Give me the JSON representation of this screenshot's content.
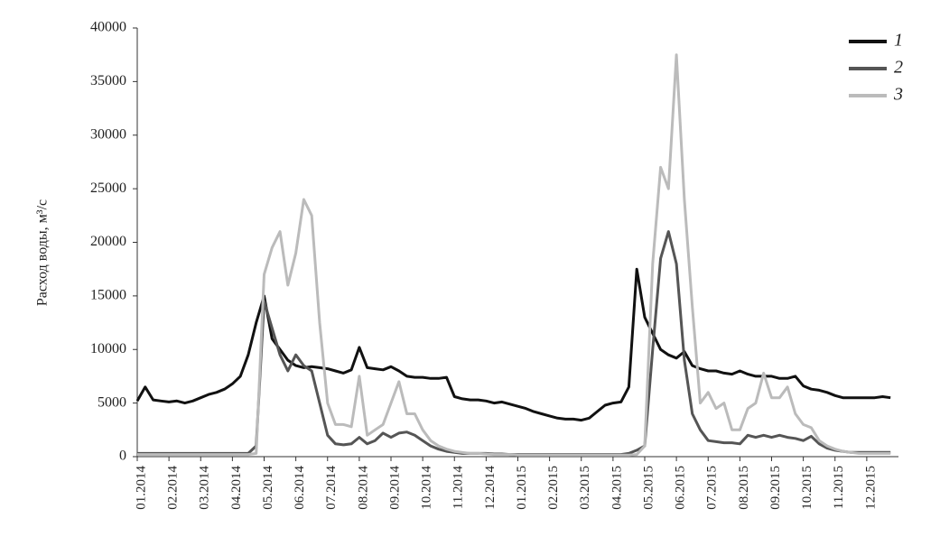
{
  "chart_data": {
    "type": "line",
    "y_label": "Расход воды, м³/с",
    "x": [
      "01.2014",
      null,
      null,
      null,
      "02.2014",
      null,
      null,
      null,
      "03.2014",
      null,
      null,
      null,
      "04.2014",
      null,
      null,
      null,
      "05.2014",
      null,
      null,
      null,
      "06.2014",
      null,
      null,
      null,
      "07.2014",
      null,
      null,
      null,
      "08.2014",
      null,
      null,
      null,
      "09.2014",
      null,
      null,
      null,
      "10.2014",
      null,
      null,
      null,
      "11.2014",
      null,
      null,
      null,
      "12.2014",
      null,
      null,
      null,
      "01.2015",
      null,
      null,
      null,
      "02.2015",
      null,
      null,
      null,
      "03.2015",
      null,
      null,
      null,
      "04.2015",
      null,
      null,
      null,
      "05.2015",
      null,
      null,
      null,
      "06.2015",
      null,
      null,
      null,
      "07.2015",
      null,
      null,
      null,
      "08.2015",
      null,
      null,
      null,
      "09.2015",
      null,
      null,
      null,
      "10.2015",
      null,
      null,
      null,
      "11.2015",
      null,
      null,
      null,
      "12.2015",
      null,
      null,
      null
    ],
    "series": [
      {
        "name": "1",
        "color": "#111111",
        "values": [
          5200,
          6500,
          5300,
          5200,
          5100,
          5200,
          5000,
          5200,
          5500,
          5800,
          6000,
          6300,
          6800,
          7500,
          9500,
          12500,
          15000,
          11000,
          10000,
          9000,
          8500,
          8300,
          8400,
          8300,
          8200,
          8000,
          7800,
          8100,
          10200,
          8300,
          8200,
          8100,
          8400,
          8000,
          7500,
          7400,
          7400,
          7300,
          7300,
          7400,
          5600,
          5400,
          5300,
          5300,
          5200,
          5000,
          5100,
          4900,
          4700,
          4500,
          4200,
          4000,
          3800,
          3600,
          3500,
          3500,
          3400,
          3600,
          4200,
          4800,
          5000,
          5100,
          6500,
          17500,
          13000,
          11500,
          10000,
          9500,
          9200,
          9800,
          8500,
          8200,
          8000,
          8000,
          7800,
          7700,
          8000,
          7700,
          7500,
          7500,
          7500,
          7300,
          7300,
          7500,
          6600,
          6300,
          6200,
          6000,
          5700,
          5500,
          5500,
          5500,
          5500,
          5500,
          5600,
          5500
        ]
      },
      {
        "name": "2",
        "color": "#555555",
        "values": [
          300,
          300,
          300,
          300,
          300,
          300,
          300,
          300,
          300,
          300,
          300,
          300,
          300,
          300,
          300,
          1000,
          14500,
          12000,
          9500,
          8000,
          9500,
          8500,
          8000,
          5000,
          2000,
          1200,
          1100,
          1200,
          1800,
          1200,
          1500,
          2200,
          1800,
          2200,
          2300,
          2000,
          1500,
          1000,
          700,
          500,
          400,
          300,
          300,
          300,
          300,
          250,
          250,
          200,
          200,
          200,
          200,
          200,
          200,
          200,
          200,
          200,
          200,
          200,
          200,
          200,
          200,
          200,
          300,
          600,
          1000,
          10000,
          18500,
          21000,
          18000,
          9000,
          4000,
          2500,
          1500,
          1400,
          1300,
          1300,
          1200,
          2000,
          1800,
          2000,
          1800,
          2000,
          1800,
          1700,
          1500,
          1900,
          1200,
          800,
          600,
          500,
          400,
          400,
          400,
          400,
          400,
          400
        ]
      },
      {
        "name": "3",
        "color": "#bbbbbb",
        "values": [
          200,
          200,
          200,
          200,
          200,
          200,
          200,
          200,
          200,
          200,
          200,
          200,
          200,
          200,
          200,
          300,
          17000,
          19500,
          21000,
          16000,
          19000,
          24000,
          22500,
          12500,
          5000,
          3000,
          3000,
          2800,
          7500,
          2000,
          2500,
          3000,
          5000,
          7000,
          4000,
          4000,
          2500,
          1500,
          1000,
          700,
          500,
          400,
          300,
          300,
          250,
          200,
          200,
          200,
          150,
          150,
          150,
          150,
          150,
          150,
          150,
          150,
          150,
          150,
          150,
          150,
          150,
          150,
          150,
          200,
          1000,
          18000,
          27000,
          25000,
          37500,
          24000,
          14000,
          5000,
          6000,
          4500,
          5000,
          2500,
          2500,
          4500,
          5000,
          7800,
          5500,
          5500,
          6500,
          4000,
          3000,
          2700,
          1500,
          1000,
          700,
          500,
          400,
          300,
          300,
          300,
          300,
          300
        ]
      }
    ],
    "ylim": [
      0,
      40000
    ],
    "yticks": [
      0,
      5000,
      10000,
      15000,
      20000,
      25000,
      30000,
      35000,
      40000
    ],
    "grid": false,
    "legend": "top-right"
  }
}
